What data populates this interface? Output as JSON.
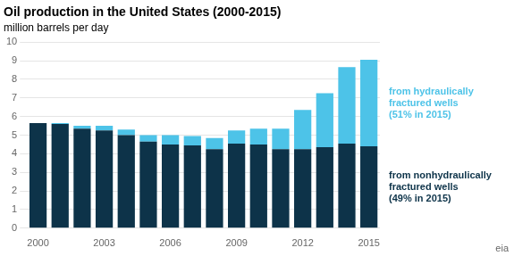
{
  "chart_data": {
    "type": "bar",
    "title": "Oil production in the United States (2000-2015)",
    "subtitle": "million barrels per day",
    "categories": [
      "2000",
      null,
      null,
      "2003",
      null,
      null,
      "2006",
      null,
      null,
      "2009",
      null,
      null,
      "2012",
      null,
      null,
      "2015"
    ],
    "series": [
      {
        "name": "from nonhydraulically\nfractured wells\n(49% in 2015)",
        "color": "#0d3349",
        "values": [
          5.65,
          5.6,
          5.35,
          5.25,
          5.0,
          4.65,
          4.5,
          4.45,
          4.25,
          4.55,
          4.5,
          4.25,
          4.25,
          4.35,
          4.55,
          4.4
        ]
      },
      {
        "name": "from hydraulically\nfractured wells\n(51% in 2015)",
        "color": "#4dc3e8",
        "values": [
          0.0,
          0.05,
          0.15,
          0.25,
          0.3,
          0.35,
          0.5,
          0.5,
          0.6,
          0.7,
          0.85,
          1.1,
          2.1,
          2.9,
          4.1,
          4.65
        ]
      }
    ],
    "stacked": true,
    "ylim": [
      0,
      10
    ],
    "yticks": [
      0,
      1,
      2,
      3,
      4,
      5,
      6,
      7,
      8,
      9,
      10
    ],
    "grid": true,
    "annotations": [
      "eia"
    ]
  }
}
